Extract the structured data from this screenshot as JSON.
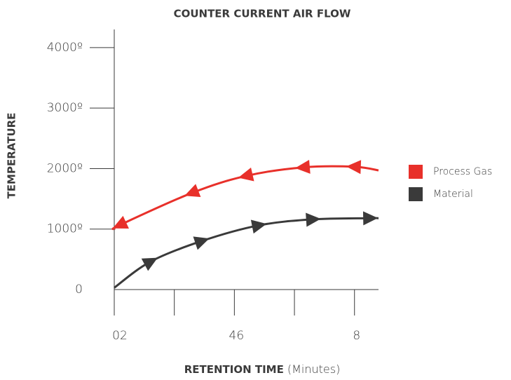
{
  "chart_data": {
    "type": "line",
    "title": "COUNTER CURRENT AIR FLOW",
    "ylabel": "TEMPERATURE",
    "xlabel": "RETENTION TIME",
    "xlabel_unit": "(Minutes)",
    "xlim": [
      0,
      8.8
    ],
    "ylim": [
      0,
      4300
    ],
    "xticks": [
      {
        "value": 0,
        "label": "02"
      },
      {
        "value": 2,
        "label": null
      },
      {
        "value": 4,
        "label": "46"
      },
      {
        "value": 6,
        "label": null
      },
      {
        "value": 8,
        "label": "8"
      }
    ],
    "yticks": [
      0,
      {
        "value": 1000,
        "label": "1000º"
      },
      {
        "value": 2000,
        "label": "2000º"
      },
      {
        "value": 3000,
        "label": "3000º"
      },
      {
        "value": 4000,
        "label": "4000º"
      }
    ],
    "series": [
      {
        "name": "Process Gas",
        "color": "#e8302a",
        "arrow": "left",
        "x": [
          0,
          0.2,
          2.6,
          4.4,
          6.3,
          8.0,
          8.8
        ],
        "values": [
          1000,
          1070,
          1600,
          1880,
          2020,
          2030,
          1970
        ]
      },
      {
        "name": "Material",
        "color": "#3a3a3a",
        "arrow": "right",
        "x": [
          0,
          1.2,
          2.9,
          4.8,
          6.6,
          8.5,
          8.8
        ],
        "values": [
          30,
          460,
          800,
          1060,
          1160,
          1180,
          1180
        ]
      }
    ]
  }
}
